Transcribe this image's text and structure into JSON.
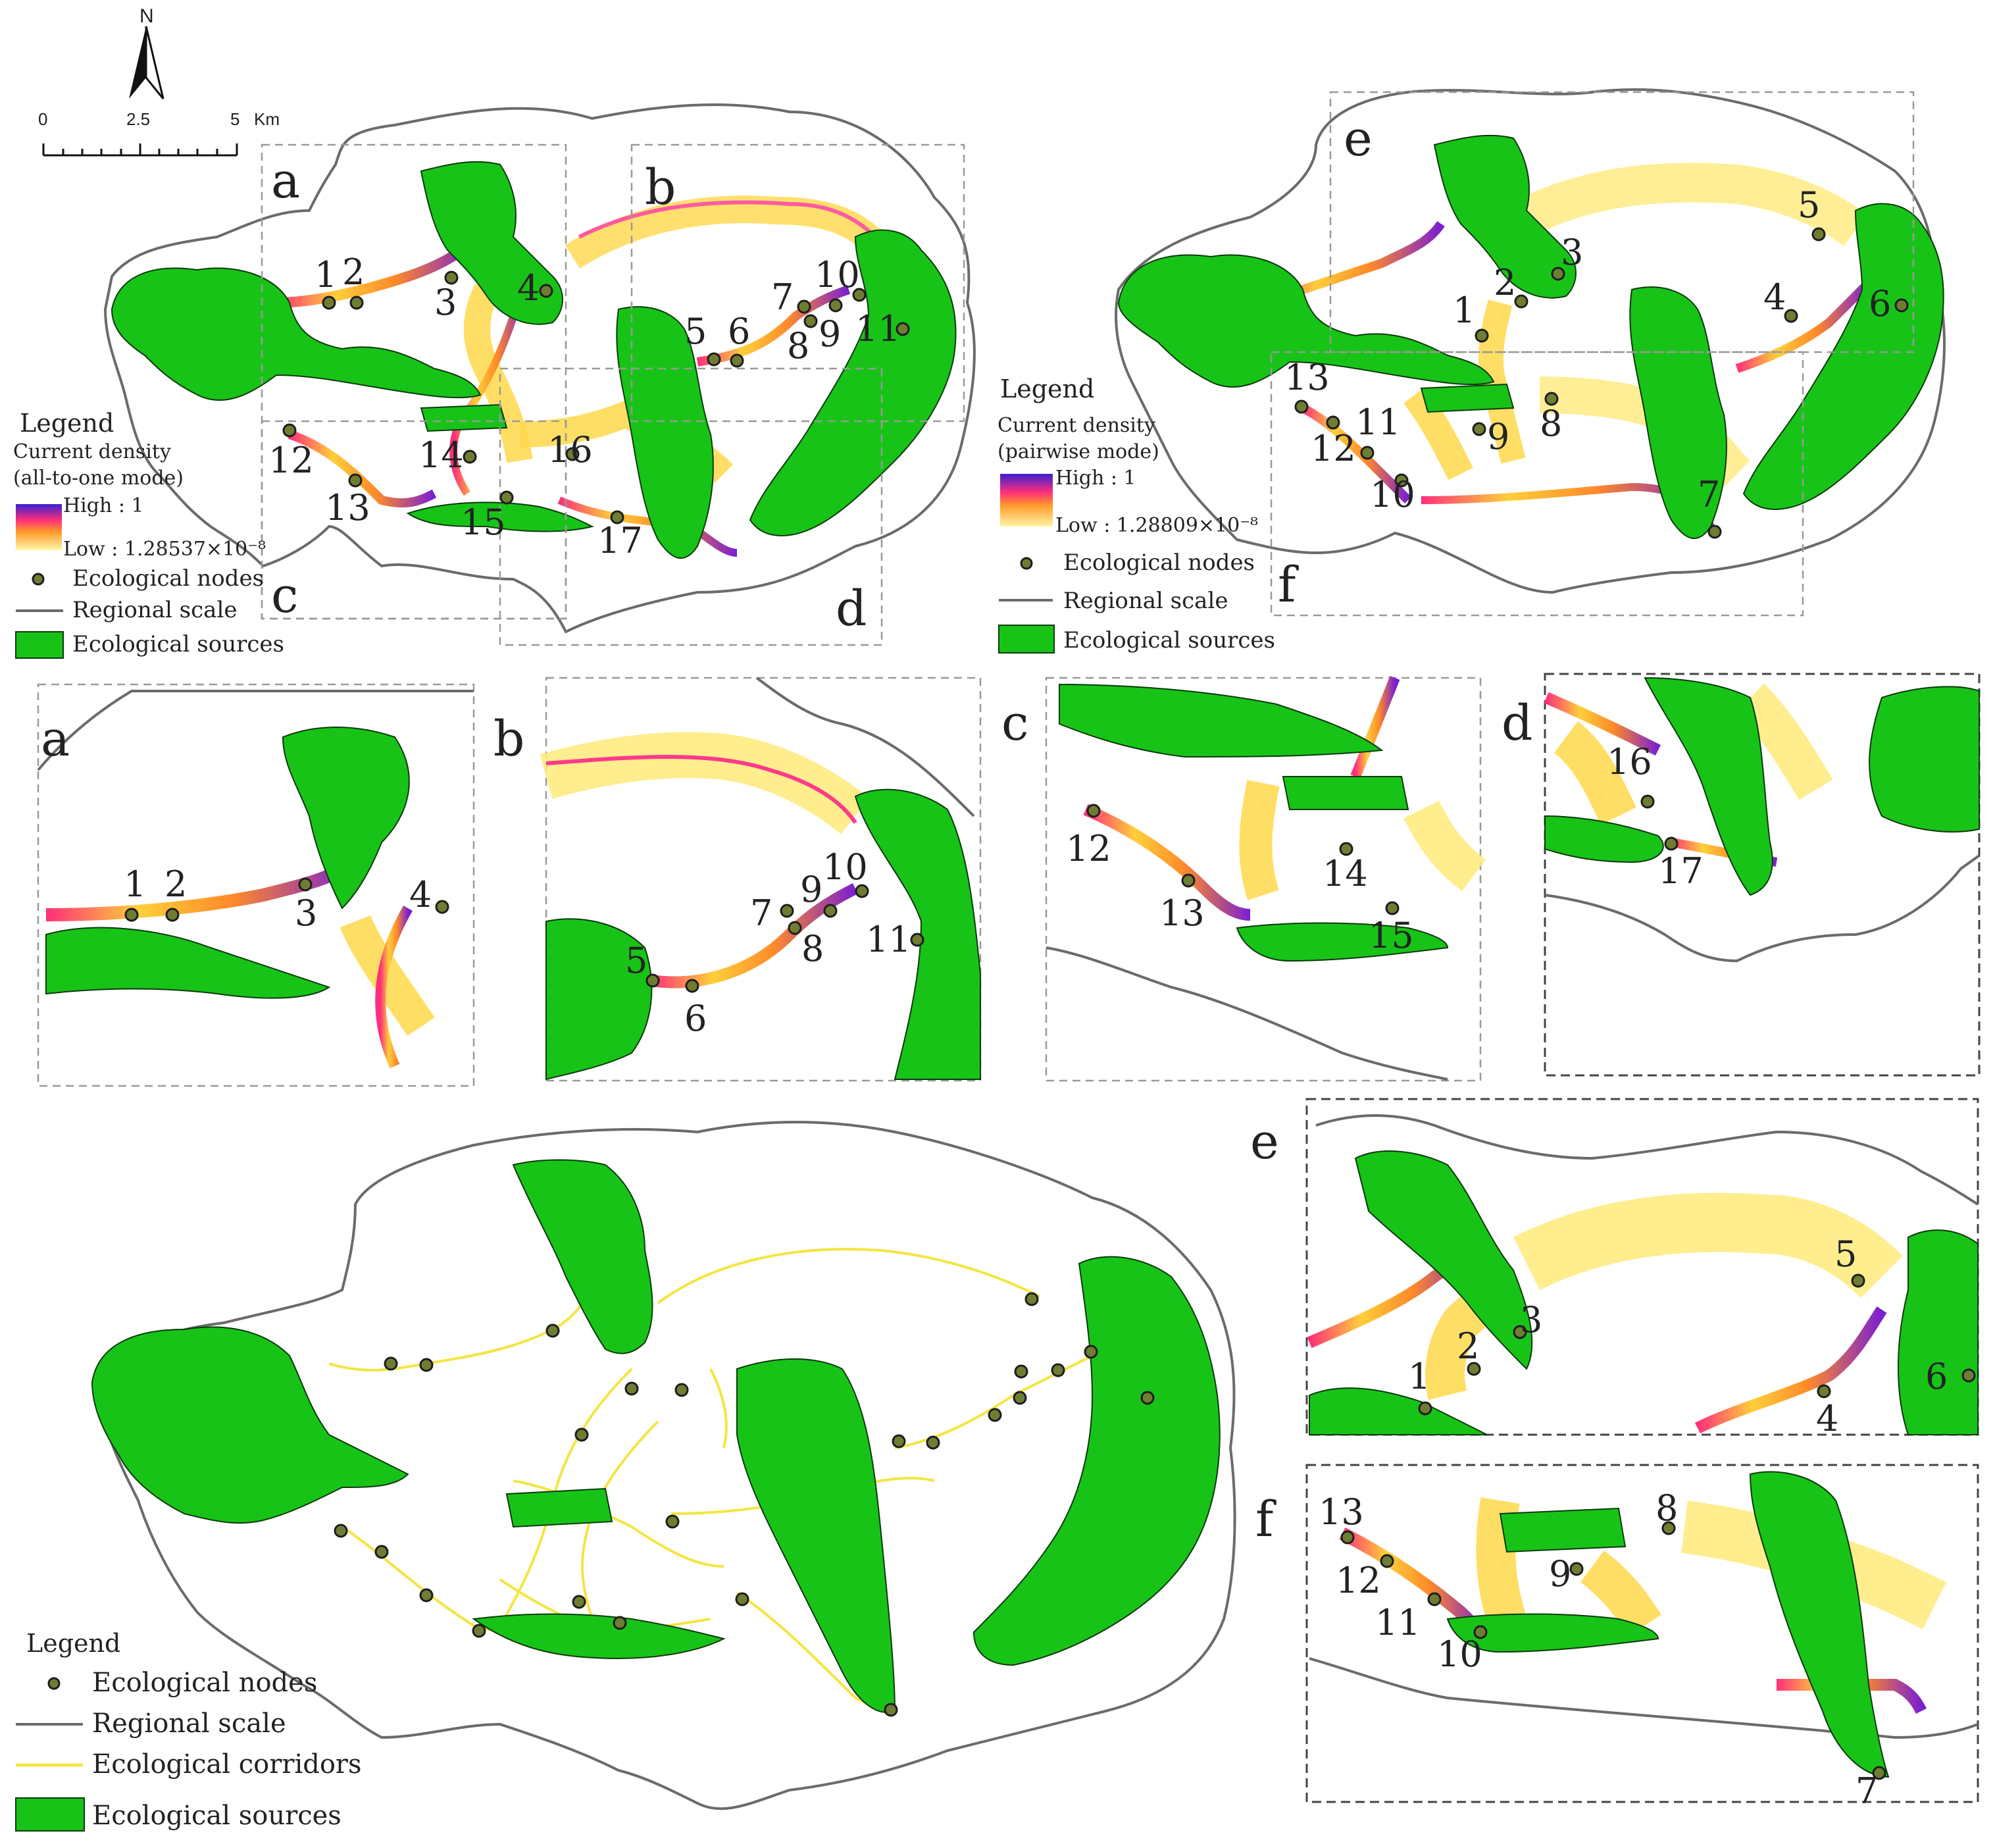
{
  "colors": {
    "ecological_sources": "#18c318",
    "regional_scale": "#6b6b6b",
    "ecological_corridors": "#f4e542",
    "density_high": "#3a1fd1",
    "density_mid": "#ff2f7a",
    "density_low": "#fff6a8",
    "node_fill": "#6f7d33"
  },
  "north_arrow": {
    "label": "N"
  },
  "scale_bar": {
    "ticks": [
      "0",
      "2.5",
      "5"
    ],
    "unit": "Km"
  },
  "map_all_to_one": {
    "panels": [
      "a",
      "b",
      "c",
      "d"
    ],
    "nodes": [
      "1",
      "2",
      "3",
      "4",
      "5",
      "6",
      "7",
      "8",
      "9",
      "10",
      "11",
      "12",
      "13",
      "14",
      "15",
      "16",
      "17"
    ],
    "legend": {
      "title": "Legend",
      "density_title": "Current density",
      "density_mode": "(all-to-one mode)",
      "high": "High : 1",
      "low": "Low : 1.28537×10⁻⁸",
      "nodes": "Ecological nodes",
      "region": "Regional scale",
      "sources": "Ecological sources"
    }
  },
  "map_pairwise": {
    "panels": [
      "e",
      "f"
    ],
    "nodes": [
      "1",
      "2",
      "3",
      "4",
      "5",
      "6",
      "7",
      "8",
      "9",
      "10",
      "11",
      "12",
      "13"
    ],
    "legend": {
      "title": "Legend",
      "density_title": "Current density",
      "density_mode": "(pairwise mode)",
      "high": "High : 1",
      "low": "Low : 1.28809×10⁻⁸",
      "nodes": "Ecological nodes",
      "region": "Regional scale",
      "sources": "Ecological sources"
    }
  },
  "insets": {
    "a": {
      "letter": "a",
      "nodes": [
        "1",
        "2",
        "3",
        "4"
      ]
    },
    "b": {
      "letter": "b",
      "nodes": [
        "5",
        "6",
        "7",
        "8",
        "9",
        "10",
        "11"
      ]
    },
    "c": {
      "letter": "c",
      "nodes": [
        "12",
        "13",
        "14",
        "15"
      ]
    },
    "d": {
      "letter": "d",
      "nodes": [
        "16",
        "17"
      ]
    },
    "e": {
      "letter": "e",
      "nodes": [
        "1",
        "2",
        "3",
        "4",
        "5",
        "6"
      ]
    },
    "f": {
      "letter": "f",
      "nodes": [
        "7",
        "8",
        "9",
        "10",
        "11",
        "12",
        "13"
      ]
    }
  },
  "map_corridors": {
    "legend": {
      "title": "Legend",
      "nodes": "Ecological nodes",
      "region": "Regional scale",
      "corridors": "Ecological corridors",
      "sources": "Ecological sources"
    }
  }
}
